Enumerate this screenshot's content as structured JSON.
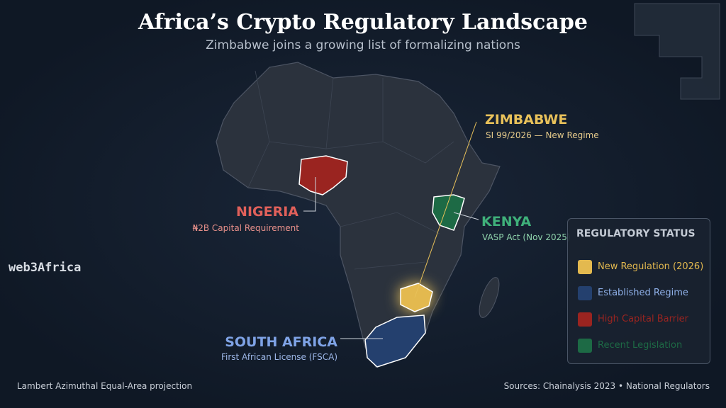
{
  "header": {
    "title": "Africa’s Crypto Regulatory Landscape",
    "subtitle": "Zimbabwe joins a growing list of formalizing nations"
  },
  "callouts": [
    {
      "country": "ZIMBABWE",
      "detail": "SI 99/2026 — New Regime",
      "color": "#e8c15a"
    },
    {
      "country": "KENYA",
      "detail": "VASP Act (Nov 2025)",
      "color": "#3fb07a"
    },
    {
      "country": "NIGERIA",
      "detail": "₦2B Capital Requirement",
      "color": "#e0605a"
    },
    {
      "country": "SOUTH AFRICA",
      "detail": "First African License (FSCA)",
      "color": "#7fa3e6"
    }
  ],
  "legend": {
    "title": "REGULATORY STATUS",
    "items": [
      {
        "label": "New Regulation (2026)",
        "color": "#e3b94f"
      },
      {
        "label": "Established Regime",
        "color": "#24406e"
      },
      {
        "label": "High Capital Barrier",
        "color": "#9a2420"
      },
      {
        "label": "Recent Legislation",
        "color": "#1d6a45"
      }
    ]
  },
  "watermark": "web3Africa",
  "footer": {
    "projection": "Lambert Azimuthal Equal-Area projection",
    "sources": "Sources: Chainalysis 2023 • National Regulators"
  }
}
